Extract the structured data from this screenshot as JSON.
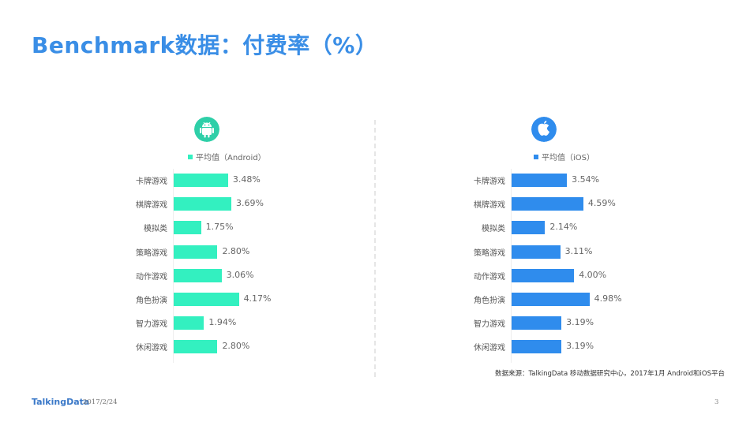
{
  "title": "Benchmark数据：付费率（%）",
  "footer": {
    "brand": "TalkingData",
    "date": "2017/2/24",
    "page_number": "3"
  },
  "source_note": "数据来源：TalkingData 移动数据研究中心，2017年1月 Android和iOS平台",
  "colors": {
    "title": "#3a8ee6",
    "android": "#33f0c0",
    "android_logo": "#2ecfa8",
    "ios": "#2f8ced"
  },
  "chart_data": [
    {
      "type": "bar",
      "orientation": "horizontal",
      "platform_icon": "android-icon",
      "title": "",
      "legend": [
        "平均值（Android）"
      ],
      "categories": [
        "卡牌游戏",
        "棋牌游戏",
        "模拟类",
        "策略游戏",
        "动作游戏",
        "角色扮演",
        "智力游戏",
        "休闲游戏"
      ],
      "series": [
        {
          "name": "平均值（Android）",
          "values": [
            3.48,
            3.69,
            1.75,
            2.8,
            3.06,
            4.17,
            1.94,
            2.8
          ],
          "labels": [
            "3.48%",
            "3.69%",
            "1.75%",
            "2.80%",
            "3.06%",
            "4.17%",
            "1.94%",
            "2.80%"
          ],
          "color": "#33f0c0"
        }
      ],
      "xlabel": "",
      "ylabel": "",
      "unit": "%",
      "grid": false,
      "legend_position": "top"
    },
    {
      "type": "bar",
      "orientation": "horizontal",
      "platform_icon": "apple-icon",
      "title": "",
      "legend": [
        "平均值（iOS）"
      ],
      "categories": [
        "卡牌游戏",
        "棋牌游戏",
        "模拟类",
        "策略游戏",
        "动作游戏",
        "角色扮演",
        "智力游戏",
        "休闲游戏"
      ],
      "series": [
        {
          "name": "平均值（iOS）",
          "values": [
            3.54,
            4.59,
            2.14,
            3.11,
            4.0,
            4.98,
            3.19,
            3.19
          ],
          "labels": [
            "3.54%",
            "4.59%",
            "2.14%",
            "3.11%",
            "4.00%",
            "4.98%",
            "3.19%",
            "3.19%"
          ],
          "color": "#2f8ced"
        }
      ],
      "xlabel": "",
      "ylabel": "",
      "unit": "%",
      "grid": false,
      "legend_position": "top"
    }
  ]
}
